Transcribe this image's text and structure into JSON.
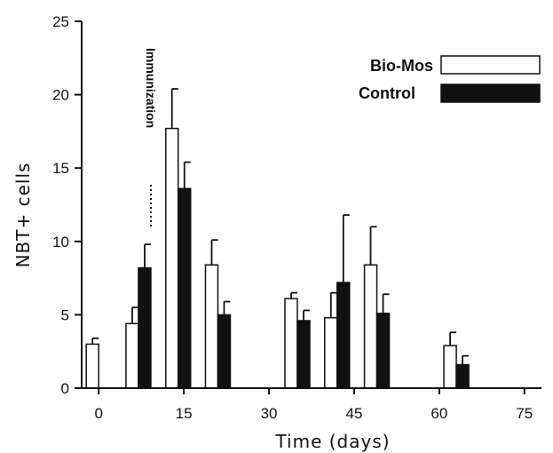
{
  "chart_data": {
    "type": "bar",
    "title": "",
    "xlabel": "Time (days)",
    "ylabel": "NBT+ cells",
    "xlim": [
      -3,
      78
    ],
    "ylim": [
      0,
      25
    ],
    "x_ticks": [
      0,
      15,
      30,
      45,
      60,
      75
    ],
    "y_ticks": [
      0,
      5,
      10,
      15,
      20,
      25
    ],
    "grid": false,
    "legend_position": "top-right",
    "annotation": {
      "text": "Immunization",
      "x": 7
    },
    "series": [
      {
        "name": "Bio-Mos",
        "color": "#ffffff",
        "points": [
          {
            "x": 0,
            "y": 3.0,
            "err": 0.4
          },
          {
            "x": 7,
            "y": 4.4,
            "err": 1.1
          },
          {
            "x": 14,
            "y": 17.7,
            "err": 2.7
          },
          {
            "x": 21,
            "y": 8.4,
            "err": 1.7
          },
          {
            "x": 35,
            "y": 6.1,
            "err": 0.4
          },
          {
            "x": 42,
            "y": 4.8,
            "err": 1.7
          },
          {
            "x": 49,
            "y": 8.4,
            "err": 2.6
          },
          {
            "x": 63,
            "y": 2.9,
            "err": 0.9
          }
        ]
      },
      {
        "name": "Control",
        "color": "#111111",
        "points": [
          {
            "x": 7,
            "y": 8.2,
            "err": 1.6
          },
          {
            "x": 14,
            "y": 13.6,
            "err": 1.8
          },
          {
            "x": 21,
            "y": 5.0,
            "err": 0.9
          },
          {
            "x": 35,
            "y": 4.6,
            "err": 0.7
          },
          {
            "x": 42,
            "y": 7.2,
            "err": 4.6
          },
          {
            "x": 49,
            "y": 5.1,
            "err": 1.3
          },
          {
            "x": 63,
            "y": 1.6,
            "err": 0.6
          }
        ]
      }
    ]
  }
}
